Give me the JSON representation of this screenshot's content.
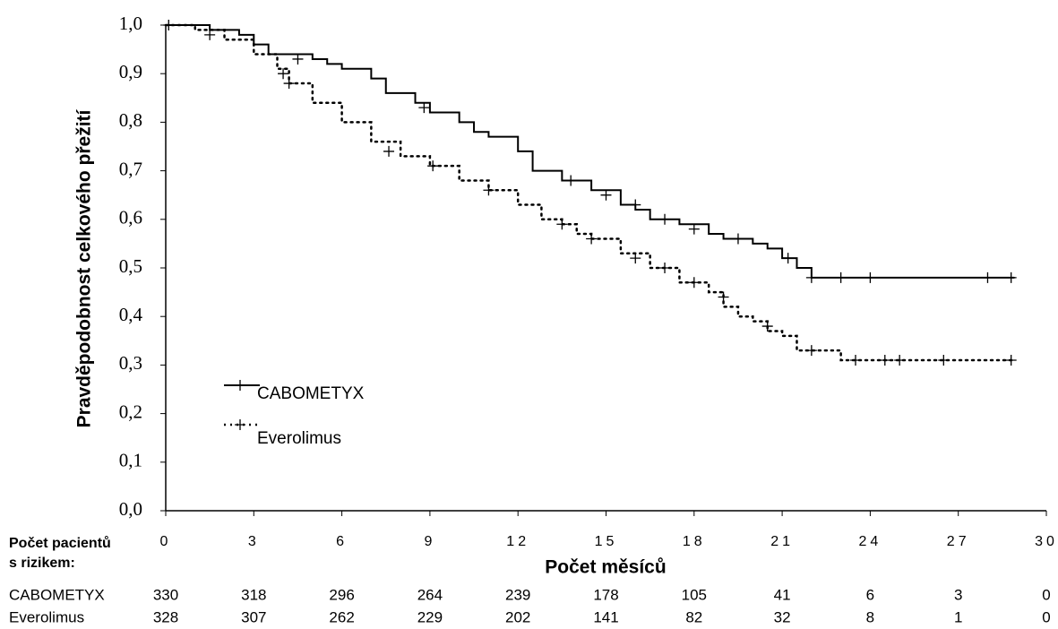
{
  "chart_data": {
    "type": "kaplan-meier",
    "y_label": "Pravděpodobnost celkového přežití",
    "x_label": "Počet měsíců",
    "xlim": [
      0,
      30
    ],
    "xticks": [
      0,
      3,
      6,
      9,
      12,
      15,
      18,
      21,
      24,
      27,
      30
    ],
    "ylim": [
      0,
      1
    ],
    "yticks": [
      {
        "value": 0,
        "label": "0,0"
      },
      {
        "value": 0.1,
        "label": "0,1"
      },
      {
        "value": 0.2,
        "label": "0,2"
      },
      {
        "value": 0.3,
        "label": "0,3"
      },
      {
        "value": 0.4,
        "label": "0,4"
      },
      {
        "value": 0.5,
        "label": "0,5"
      },
      {
        "value": 0.6,
        "label": "0,6"
      },
      {
        "value": 0.7,
        "label": "0,7"
      },
      {
        "value": 0.8,
        "label": "0,8"
      },
      {
        "value": 0.9,
        "label": "0,9"
      },
      {
        "value": 1,
        "label": "1,0"
      }
    ],
    "series": [
      {
        "name": "CABOMETYX",
        "color": "#000000",
        "dash": "solid",
        "x": [
          0,
          1.5,
          2.5,
          3,
          3.5,
          5,
          5.5,
          6,
          7,
          7.5,
          8.5,
          9,
          10,
          10.5,
          11,
          12,
          12.5,
          13.5,
          14.5,
          15.5,
          16,
          16.5,
          17.5,
          18.5,
          19,
          20,
          20.5,
          21,
          21.5,
          22,
          28.9
        ],
        "values": [
          1.0,
          0.99,
          0.98,
          0.96,
          0.94,
          0.93,
          0.92,
          0.91,
          0.89,
          0.86,
          0.84,
          0.82,
          0.8,
          0.78,
          0.77,
          0.74,
          0.7,
          0.68,
          0.66,
          0.63,
          0.62,
          0.6,
          0.59,
          0.57,
          0.56,
          0.55,
          0.54,
          0.52,
          0.5,
          0.48,
          0.48
        ],
        "censored": {
          "x": [
            0.1,
            4.5,
            8.8,
            13.8,
            15,
            16,
            17,
            18,
            19.5,
            21.2,
            22,
            23,
            24,
            28,
            28.8
          ],
          "values": [
            1.0,
            0.93,
            0.83,
            0.68,
            0.65,
            0.63,
            0.6,
            0.58,
            0.56,
            0.52,
            0.48,
            0.48,
            0.48,
            0.48,
            0.48
          ]
        },
        "at_risk": [
          330,
          318,
          296,
          264,
          239,
          178,
          105,
          41,
          6,
          3,
          0
        ]
      },
      {
        "name": "Everolimus",
        "color": "#000000",
        "dash": "dotted",
        "x": [
          0,
          1,
          2,
          3,
          3.8,
          4.2,
          5,
          6,
          7,
          8,
          9,
          10,
          11,
          12,
          12.8,
          13.5,
          14,
          14.5,
          15.5,
          16.5,
          17.5,
          18.5,
          19,
          19.5,
          20,
          20.5,
          21,
          21.5,
          23,
          28.9
        ],
        "values": [
          1.0,
          0.99,
          0.97,
          0.94,
          0.91,
          0.88,
          0.84,
          0.8,
          0.76,
          0.73,
          0.71,
          0.68,
          0.66,
          0.63,
          0.6,
          0.59,
          0.57,
          0.56,
          0.53,
          0.5,
          0.47,
          0.45,
          0.42,
          0.4,
          0.39,
          0.37,
          0.36,
          0.33,
          0.31,
          0.31
        ],
        "censored": {
          "x": [
            1.5,
            4,
            4.2,
            7.6,
            9.1,
            11,
            13.5,
            14.5,
            16,
            17,
            18,
            19,
            20.5,
            22,
            23.5,
            24.5,
            25,
            26.5,
            28.8
          ],
          "values": [
            0.98,
            0.9,
            0.88,
            0.74,
            0.71,
            0.66,
            0.59,
            0.56,
            0.52,
            0.5,
            0.47,
            0.44,
            0.38,
            0.33,
            0.31,
            0.31,
            0.31,
            0.31,
            0.31
          ]
        },
        "at_risk": [
          328,
          307,
          262,
          229,
          202,
          141,
          82,
          32,
          8,
          1,
          0
        ]
      }
    ],
    "risk_table_title": [
      "Počet pacientů",
      "s rizikem:"
    ]
  }
}
